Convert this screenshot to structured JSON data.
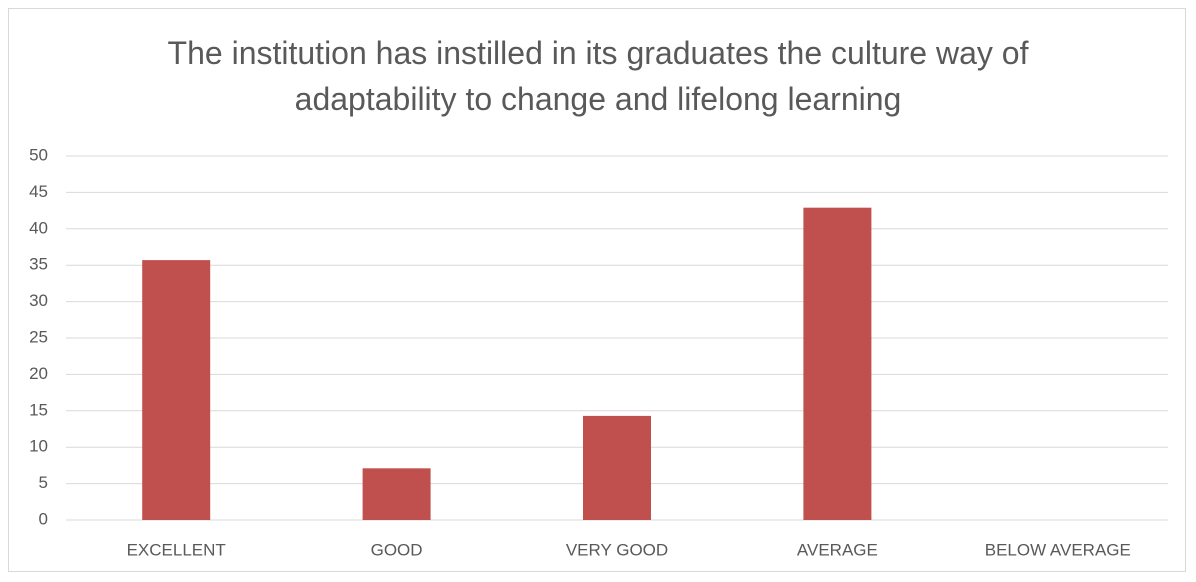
{
  "chart_data": {
    "type": "bar",
    "title": "The institution has instilled in its graduates the culture way of adaptability to change and lifelong learning",
    "categories": [
      "EXCELLENT",
      "GOOD",
      "VERY GOOD",
      "AVERAGE",
      "BELOW AVERAGE"
    ],
    "values": [
      35.7,
      7.1,
      14.3,
      42.9,
      0
    ],
    "color": "#c0504d",
    "ylim": [
      0,
      50
    ],
    "yticks": [
      0,
      5,
      10,
      15,
      20,
      25,
      30,
      35,
      40,
      45,
      50
    ],
    "grid": true
  }
}
